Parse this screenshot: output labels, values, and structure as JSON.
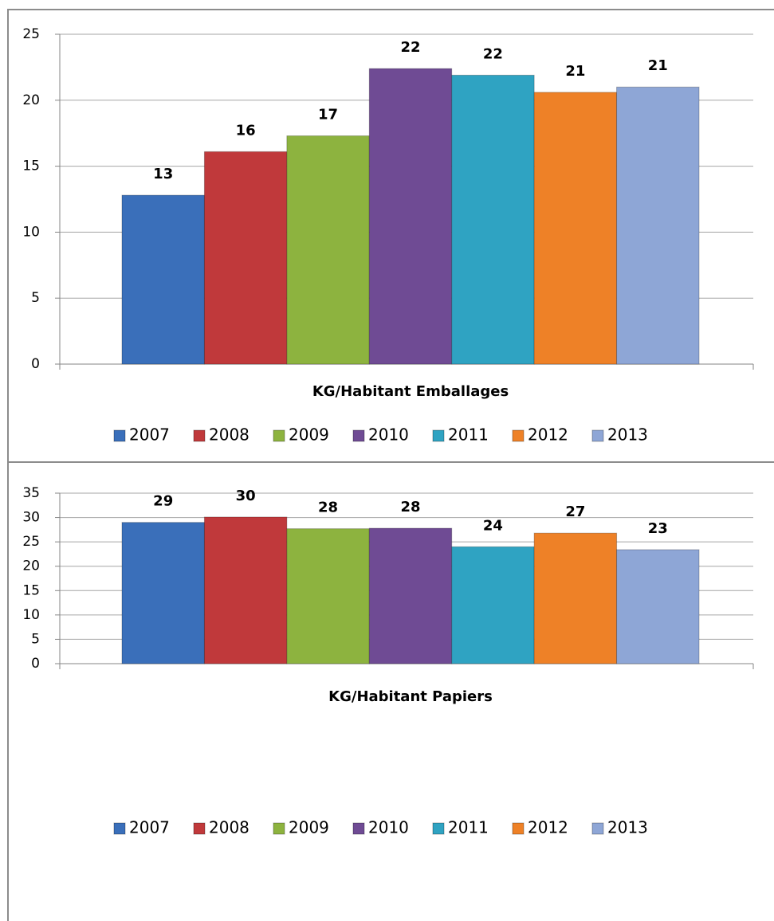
{
  "chart_data": [
    {
      "type": "bar",
      "categories": [
        "KG/Habitant Emballages"
      ],
      "ylim": [
        0,
        25
      ],
      "yticks": [
        0,
        5,
        10,
        15,
        20,
        25
      ],
      "grid": true,
      "legend": "bottom",
      "series": [
        {
          "name": "2007",
          "color": "#3a6fba",
          "values": [
            12.8
          ],
          "value_labels": [
            "13"
          ]
        },
        {
          "name": "2008",
          "color": "#c0393b",
          "values": [
            16.1
          ],
          "value_labels": [
            "16"
          ]
        },
        {
          "name": "2009",
          "color": "#8db33f",
          "values": [
            17.3
          ],
          "value_labels": [
            "17"
          ]
        },
        {
          "name": "2010",
          "color": "#6f4b94",
          "values": [
            22.4
          ],
          "value_labels": [
            "22"
          ]
        },
        {
          "name": "2011",
          "color": "#2fa3c2",
          "values": [
            21.9
          ],
          "value_labels": [
            "22"
          ]
        },
        {
          "name": "2012",
          "color": "#ee8127",
          "values": [
            20.6
          ],
          "value_labels": [
            "21"
          ]
        },
        {
          "name": "2013",
          "color": "#8ea6d6",
          "values": [
            21.0
          ],
          "value_labels": [
            "21"
          ]
        }
      ]
    },
    {
      "type": "bar",
      "categories": [
        "KG/Habitant Papiers"
      ],
      "ylim": [
        0,
        35
      ],
      "yticks": [
        0,
        5,
        10,
        15,
        20,
        25,
        30,
        35
      ],
      "grid": true,
      "legend": "bottom",
      "series": [
        {
          "name": "2007",
          "color": "#3a6fba",
          "values": [
            29.0
          ],
          "value_labels": [
            "29"
          ]
        },
        {
          "name": "2008",
          "color": "#c0393b",
          "values": [
            30.1
          ],
          "value_labels": [
            "30"
          ]
        },
        {
          "name": "2009",
          "color": "#8db33f",
          "values": [
            27.7
          ],
          "value_labels": [
            "28"
          ]
        },
        {
          "name": "2010",
          "color": "#6f4b94",
          "values": [
            27.8
          ],
          "value_labels": [
            "28"
          ]
        },
        {
          "name": "2011",
          "color": "#2fa3c2",
          "values": [
            24.0
          ],
          "value_labels": [
            "24"
          ]
        },
        {
          "name": "2012",
          "color": "#ee8127",
          "values": [
            26.8
          ],
          "value_labels": [
            "27"
          ]
        },
        {
          "name": "2013",
          "color": "#8ea6d6",
          "values": [
            23.4
          ],
          "value_labels": [
            "23"
          ]
        }
      ]
    }
  ]
}
